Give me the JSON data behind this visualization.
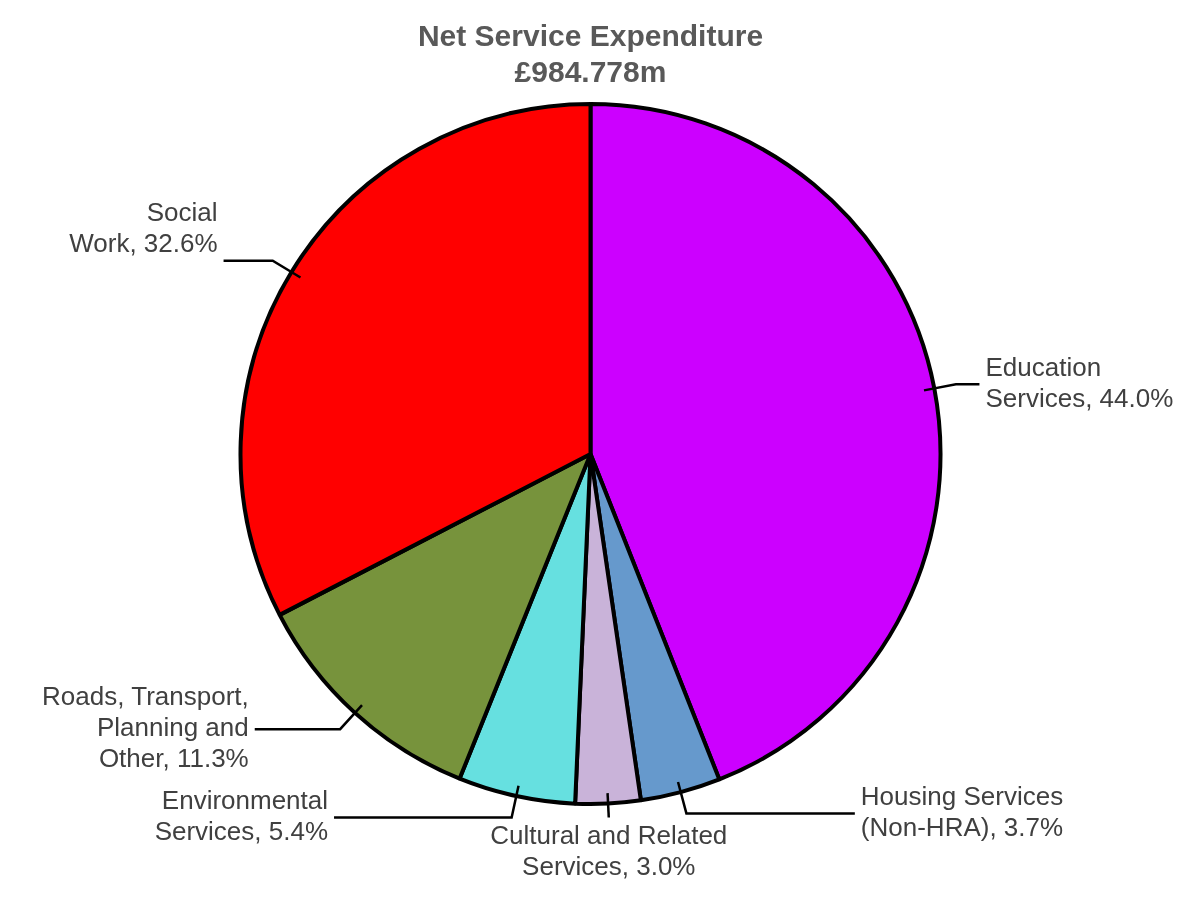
{
  "chart_data": {
    "type": "pie",
    "title": "Net Service Expenditure\n£984.778m",
    "categories": [
      "Education Services",
      "Housing Services (Non-HRA)",
      "Cultural and Related Services",
      "Environmental Services",
      "Roads, Transport, Planning and Other",
      "Social Work"
    ],
    "values": [
      44.0,
      3.7,
      3.0,
      5.4,
      11.3,
      32.6
    ],
    "value_labels": [
      "44.0%",
      "3.7%",
      "3.0%",
      "5.4%",
      "11.3%",
      "32.6%"
    ],
    "colors": [
      "#cc00ff",
      "#6699cc",
      "#c9b3d9",
      "#66e0e0",
      "#77933c",
      "#ff0000"
    ],
    "legend": false
  }
}
